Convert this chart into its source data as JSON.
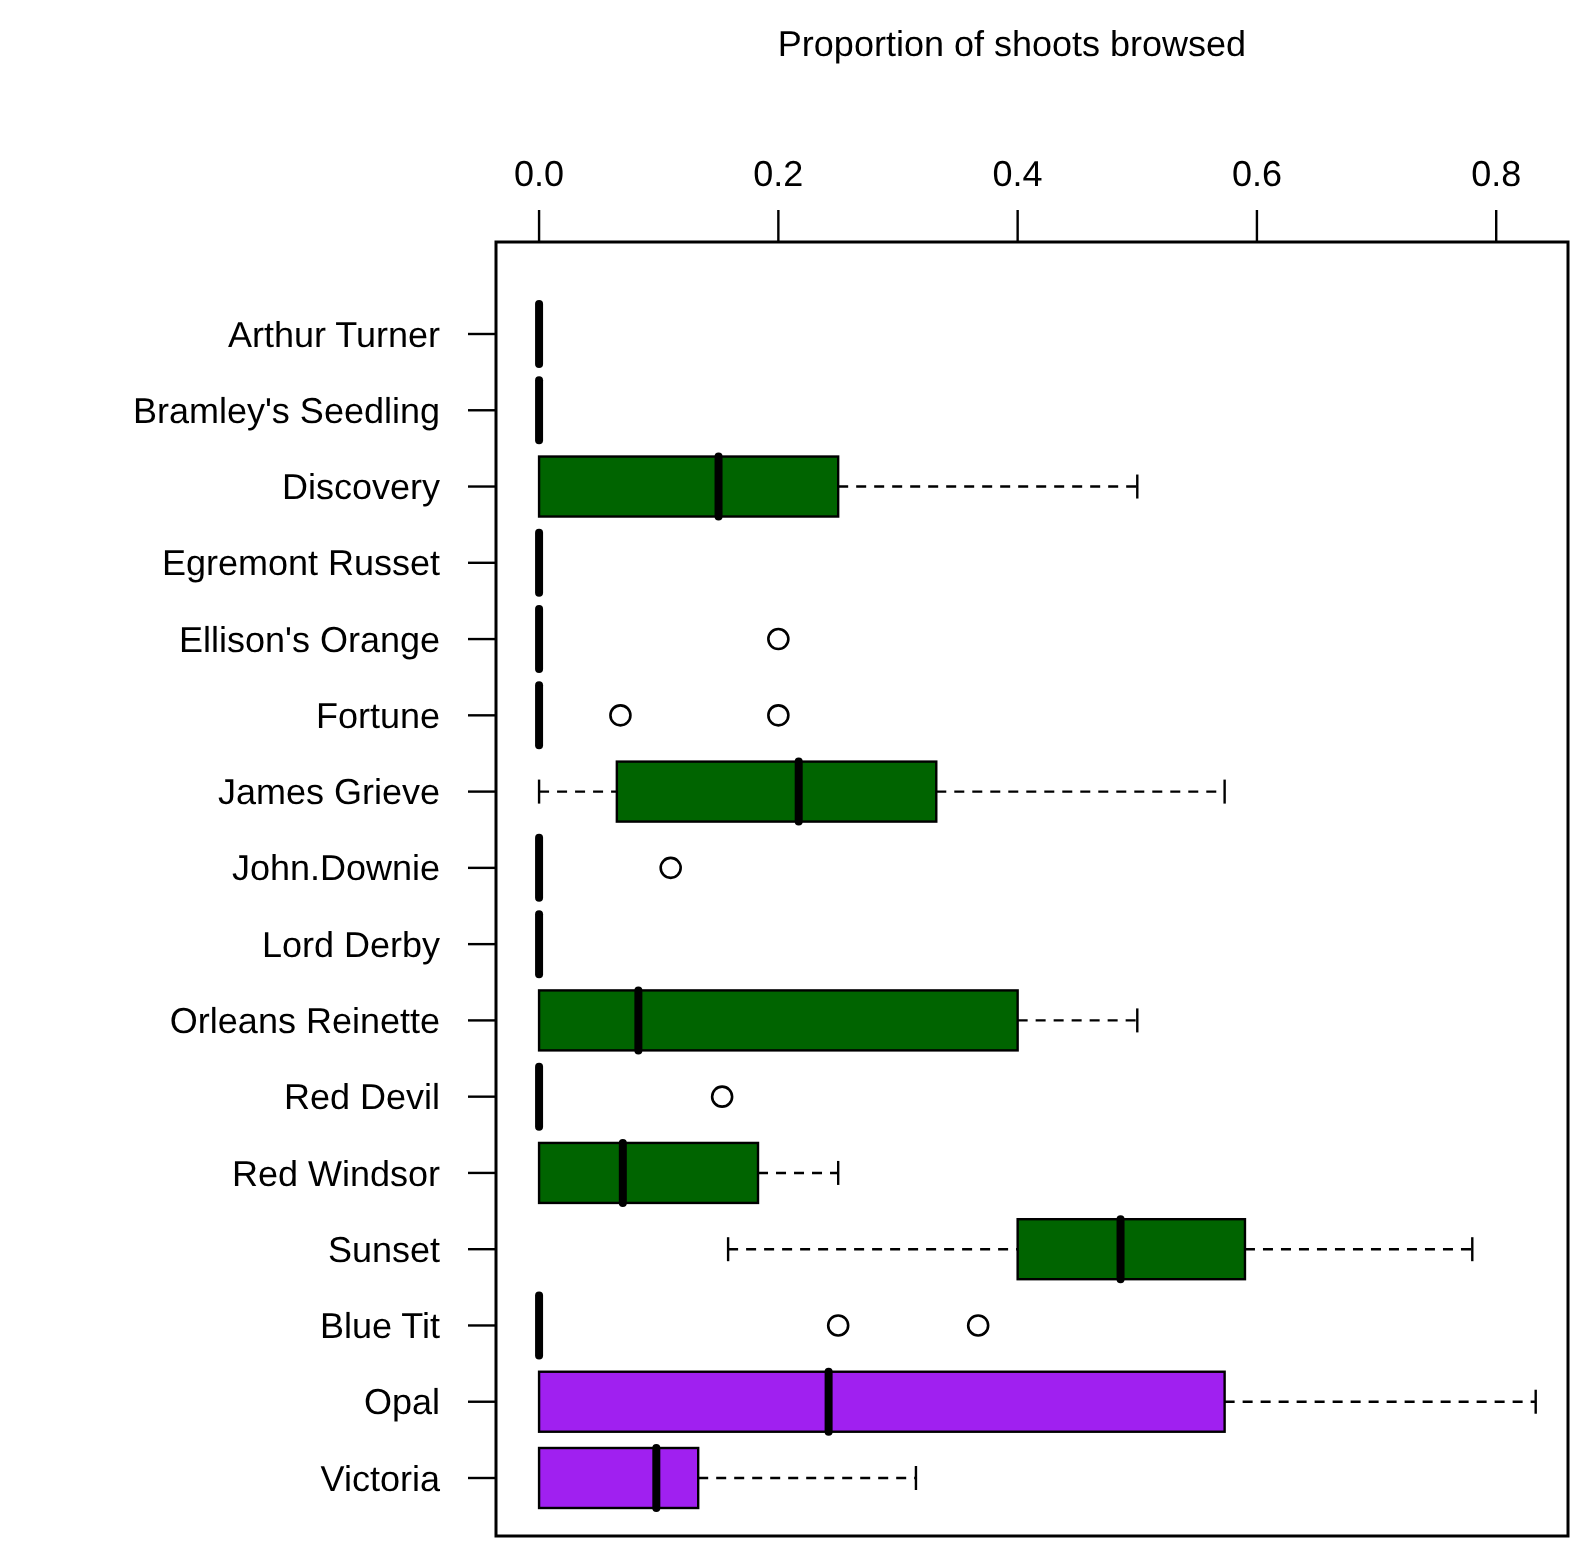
{
  "chart_data": {
    "type": "box",
    "orientation": "horizontal",
    "xlabel": "Proportion of shoots browsed",
    "categories": [
      "Arthur Turner",
      "Bramley's Seedling",
      "Discovery",
      "Egremont Russet",
      "Ellison's Orange",
      "Fortune",
      "James Grieve",
      "John.Downie",
      "Lord Derby",
      "Orleans Reinette",
      "Red Devil",
      "Red Windsor",
      "Sunset",
      "Blue Tit",
      "Opal",
      "Victoria"
    ],
    "boxes": [
      {
        "low": 0,
        "q1": 0,
        "median": 0,
        "q3": 0,
        "high": 0
      },
      {
        "low": 0,
        "q1": 0,
        "median": 0,
        "q3": 0,
        "high": 0
      },
      {
        "low": 0,
        "q1": 0,
        "median": 0.15,
        "q3": 0.25,
        "high": 0.5
      },
      {
        "low": 0,
        "q1": 0,
        "median": 0,
        "q3": 0,
        "high": 0
      },
      {
        "low": 0,
        "q1": 0,
        "median": 0,
        "q3": 0,
        "high": 0,
        "outliers": [
          0.2
        ]
      },
      {
        "low": 0,
        "q1": 0,
        "median": 0,
        "q3": 0,
        "high": 0,
        "outliers": [
          0.068,
          0.2
        ]
      },
      {
        "low": 0,
        "q1": 0.065,
        "median": 0.217,
        "q3": 0.332,
        "high": 0.573
      },
      {
        "low": 0,
        "q1": 0,
        "median": 0,
        "q3": 0,
        "high": 0,
        "outliers": [
          0.11
        ]
      },
      {
        "low": 0,
        "q1": 0,
        "median": 0,
        "q3": 0,
        "high": 0
      },
      {
        "low": 0,
        "q1": 0,
        "median": 0.083,
        "q3": 0.4,
        "high": 0.5
      },
      {
        "low": 0,
        "q1": 0,
        "median": 0,
        "q3": 0,
        "high": 0,
        "outliers": [
          0.153
        ]
      },
      {
        "low": 0,
        "q1": 0,
        "median": 0.07,
        "q3": 0.183,
        "high": 0.25
      },
      {
        "low": 0.158,
        "q1": 0.4,
        "median": 0.486,
        "q3": 0.59,
        "high": 0.78
      },
      {
        "low": 0,
        "q1": 0,
        "median": 0,
        "q3": 0,
        "high": 0,
        "outliers": [
          0.25,
          0.367
        ]
      },
      {
        "low": 0,
        "q1": 0,
        "median": 0.242,
        "q3": 0.573,
        "high": 0.833
      },
      {
        "low": 0,
        "q1": 0,
        "median": 0.098,
        "q3": 0.133,
        "high": 0.315
      }
    ],
    "colors": [
      null,
      null,
      "#006400",
      null,
      null,
      null,
      "#006400",
      null,
      null,
      "#006400",
      null,
      "#006400",
      "#006400",
      null,
      "#a020f0",
      "#a020f0"
    ],
    "xlim": [
      -0.036,
      0.86
    ],
    "xticks": [
      {
        "value": 0,
        "label": "0.0"
      },
      {
        "value": 0.2,
        "label": "0.2"
      },
      {
        "value": 0.4,
        "label": "0.4"
      },
      {
        "value": 0.6,
        "label": "0.6"
      },
      {
        "value": 0.8,
        "label": "0.8"
      }
    ],
    "grid": false
  }
}
